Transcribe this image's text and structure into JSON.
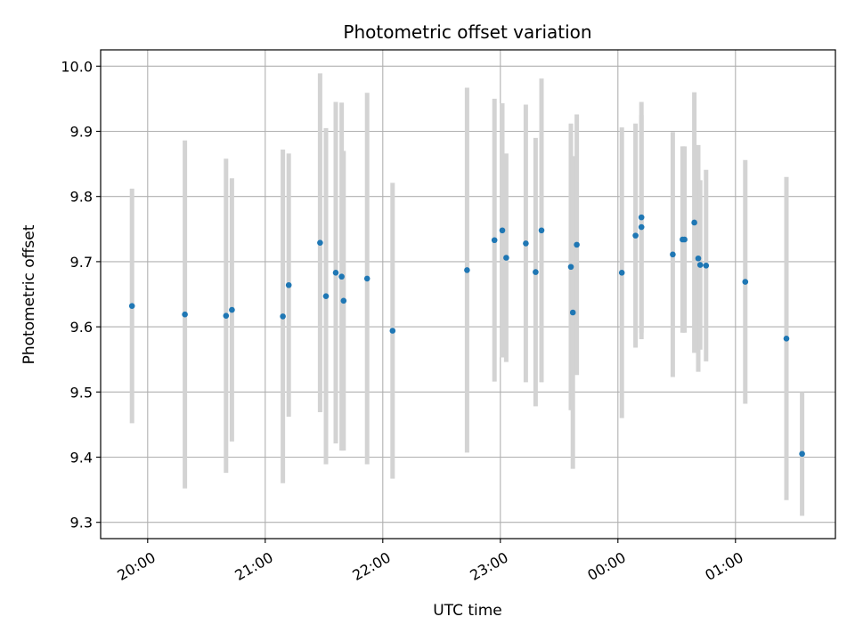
{
  "chart_data": {
    "type": "scatter",
    "title": "Photometric offset variation",
    "xlabel": "UTC time",
    "ylabel": "Photometric offset",
    "xlim": [
      "19:36",
      "01:51"
    ],
    "ylim": [
      9.275,
      10.025
    ],
    "x_ticks": [
      "20:00",
      "21:00",
      "22:00",
      "23:00",
      "00:00",
      "01:00"
    ],
    "y_ticks": [
      9.3,
      9.4,
      9.5,
      9.6,
      9.7,
      9.8,
      9.9,
      10.0
    ],
    "grid": true,
    "colors": {
      "point": "#1f77b4",
      "errorbar": "#d3d3d3",
      "grid": "#b0b0b0"
    },
    "points": [
      {
        "x": "19:52",
        "y": 9.632,
        "err": 0.18
      },
      {
        "x": "20:19",
        "y": 9.619,
        "err": 0.267
      },
      {
        "x": "20:40",
        "y": 9.617,
        "err": 0.241
      },
      {
        "x": "20:43",
        "y": 9.626,
        "err": 0.202
      },
      {
        "x": "21:09",
        "y": 9.616,
        "err": 0.256
      },
      {
        "x": "21:12",
        "y": 9.664,
        "err": 0.202
      },
      {
        "x": "21:28",
        "y": 9.729,
        "err": 0.26
      },
      {
        "x": "21:31",
        "y": 9.647,
        "err": 0.258
      },
      {
        "x": "21:36",
        "y": 9.683,
        "err": 0.262
      },
      {
        "x": "21:39",
        "y": 9.677,
        "err": 0.267
      },
      {
        "x": "21:40",
        "y": 9.64,
        "err": 0.23
      },
      {
        "x": "21:52",
        "y": 9.674,
        "err": 0.285
      },
      {
        "x": "22:05",
        "y": 9.594,
        "err": 0.227
      },
      {
        "x": "22:43",
        "y": 9.687,
        "err": 0.28
      },
      {
        "x": "22:57",
        "y": 9.733,
        "err": 0.217
      },
      {
        "x": "23:01",
        "y": 9.748,
        "err": 0.195
      },
      {
        "x": "23:03",
        "y": 9.706,
        "err": 0.16
      },
      {
        "x": "23:13",
        "y": 9.728,
        "err": 0.213
      },
      {
        "x": "23:18",
        "y": 9.684,
        "err": 0.206
      },
      {
        "x": "23:21",
        "y": 9.748,
        "err": 0.233
      },
      {
        "x": "23:36",
        "y": 9.692,
        "err": 0.22
      },
      {
        "x": "23:37",
        "y": 9.622,
        "err": 0.24
      },
      {
        "x": "23:39",
        "y": 9.726,
        "err": 0.2
      },
      {
        "x": "00:02",
        "y": 9.683,
        "err": 0.223
      },
      {
        "x": "00:09",
        "y": 9.74,
        "err": 0.172
      },
      {
        "x": "00:12",
        "y": 9.753,
        "err": 0.172
      },
      {
        "x": "00:12",
        "y": 9.768,
        "err": 0.177
      },
      {
        "x": "00:28",
        "y": 9.711,
        "err": 0.188
      },
      {
        "x": "00:33",
        "y": 9.734,
        "err": 0.143
      },
      {
        "x": "00:34",
        "y": 9.734,
        "err": 0.143
      },
      {
        "x": "00:39",
        "y": 9.76,
        "err": 0.2
      },
      {
        "x": "00:41",
        "y": 9.705,
        "err": 0.174
      },
      {
        "x": "00:42",
        "y": 9.695,
        "err": 0.13
      },
      {
        "x": "00:45",
        "y": 9.694,
        "err": 0.147
      },
      {
        "x": "01:05",
        "y": 9.669,
        "err": 0.187
      },
      {
        "x": "01:26",
        "y": 9.582,
        "err": 0.248
      },
      {
        "x": "01:34",
        "y": 9.405,
        "err": 0.095
      }
    ]
  }
}
